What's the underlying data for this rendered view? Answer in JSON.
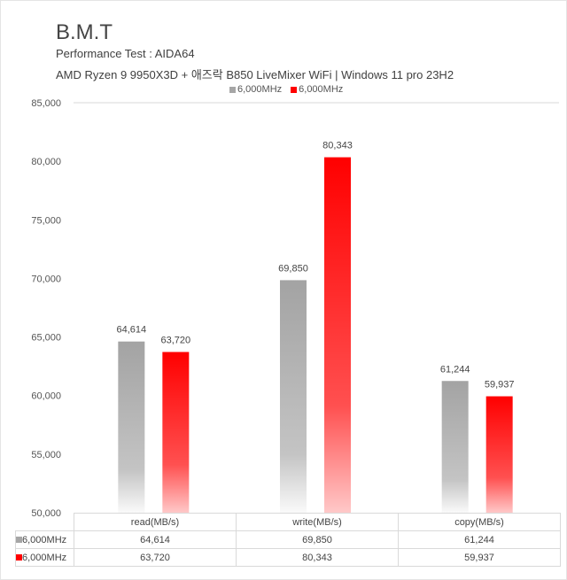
{
  "chart_data": {
    "type": "bar",
    "title": "B.M.T",
    "subtitle": [
      "Performance Test : AIDA64",
      "AMD Ryzen 9 9950X3D + 애즈락 B850 LiveMixer WiFi | Windows 11 pro 23H2"
    ],
    "categories": [
      "read(MB/s)",
      "write(MB/s)",
      "copy(MB/s)"
    ],
    "series": [
      {
        "name": "6,000MHz",
        "color": "#a6a6a6",
        "values": [
          64614,
          69850,
          61244
        ],
        "labels": [
          "64,614",
          "69,850",
          "61,244"
        ]
      },
      {
        "name": "6,000MHz",
        "color": "#ff0000",
        "values": [
          63720,
          80343,
          59937
        ],
        "labels": [
          "63,720",
          "80,343",
          "59,937"
        ]
      }
    ],
    "ylim": [
      50000,
      85000
    ],
    "yticks": [
      "50,000",
      "55,000",
      "60,000",
      "65,000",
      "70,000",
      "75,000",
      "80,000",
      "85,000"
    ],
    "legend": "top",
    "data_table": true
  }
}
